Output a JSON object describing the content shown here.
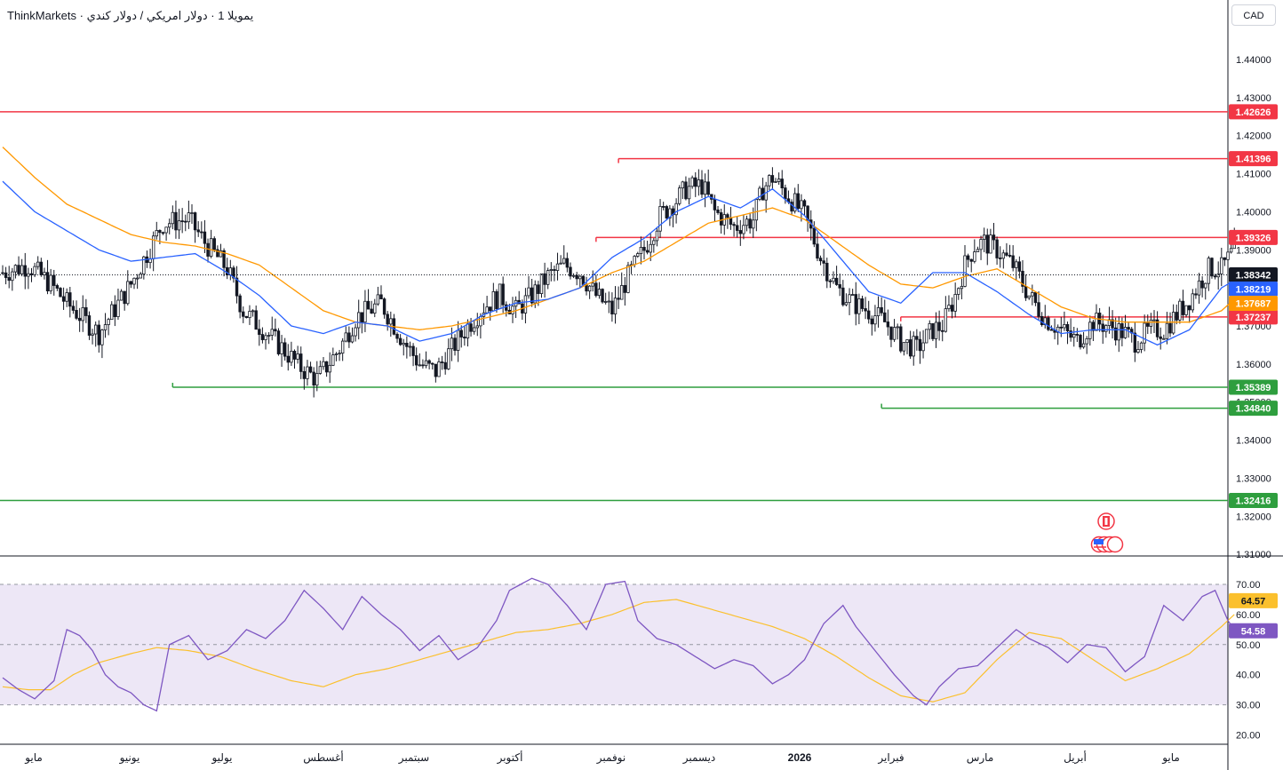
{
  "header": {
    "title": "ThinkMarkets · يمويلا 1 · دولار امريكي / دولار كندي",
    "currency_button": "CAD"
  },
  "colors": {
    "candle": "#131722",
    "ema_fast": "#2962ff",
    "ema_slow": "#ff9800",
    "resistance": "#f23645",
    "support": "#2e9e3e",
    "rsi_line": "#7e57c2",
    "rsi_ma": "#fbc02d",
    "rsi_band": "#ede7f6",
    "current_price": "#131722"
  },
  "chart_data": [
    {
      "type": "candlestick",
      "title": "",
      "price_axis": {
        "ylim": [
          1.305,
          1.455
        ],
        "ticks": [
          "1.44000",
          "1.43000",
          "1.42000",
          "1.41000",
          "1.40000",
          "1.39000",
          "1.37000",
          "1.36000",
          "1.35000",
          "1.34000",
          "1.33000",
          "1.32000",
          "1.31000"
        ]
      },
      "time_axis": {
        "labels": [
          "مايو",
          "يونيو",
          "يوليو",
          "أغسطس",
          "سبتمبر",
          "أكتوبر",
          "نوفمبر",
          "ديسمبر",
          "2026",
          "فبراير",
          "مارس",
          "أبريل",
          "مايو"
        ],
        "bold": [
          "2026"
        ]
      },
      "horizontal_levels": [
        {
          "price": 1.42626,
          "label": "1.42626",
          "role": "resistance"
        },
        {
          "price": 1.41396,
          "label": "1.41396",
          "role": "resistance"
        },
        {
          "price": 1.39326,
          "label": "1.39326",
          "role": "resistance"
        },
        {
          "price": 1.37237,
          "label": "1.37237",
          "role": "resistance"
        },
        {
          "price": 1.35389,
          "label": "1.35389",
          "role": "support"
        },
        {
          "price": 1.3484,
          "label": "1.34840",
          "role": "support"
        },
        {
          "price": 1.32416,
          "label": "1.32416",
          "role": "support"
        }
      ],
      "price_labels": [
        {
          "price": 1.38342,
          "label": "1.38342",
          "role": "current"
        },
        {
          "price": 1.38219,
          "label": "1.38219",
          "role": "ema_fast"
        },
        {
          "price": 1.37687,
          "label": "1.37687",
          "role": "ema_slow"
        }
      ],
      "close_path": [
        [
          0,
          1.384
        ],
        [
          8,
          1.386
        ],
        [
          15,
          1.381
        ],
        [
          20,
          1.376
        ],
        [
          25,
          1.372
        ],
        [
          30,
          1.368
        ],
        [
          40,
          1.381
        ],
        [
          50,
          1.397
        ],
        [
          58,
          1.398
        ],
        [
          63,
          1.392
        ],
        [
          70,
          1.385
        ],
        [
          75,
          1.374
        ],
        [
          85,
          1.366
        ],
        [
          93,
          1.359
        ],
        [
          98,
          1.356
        ],
        [
          105,
          1.364
        ],
        [
          110,
          1.372
        ],
        [
          118,
          1.376
        ],
        [
          125,
          1.366
        ],
        [
          130,
          1.36
        ],
        [
          135,
          1.358
        ],
        [
          140,
          1.364
        ],
        [
          145,
          1.37
        ],
        [
          150,
          1.375
        ],
        [
          155,
          1.378
        ],
        [
          160,
          1.374
        ],
        [
          165,
          1.378
        ],
        [
          170,
          1.383
        ],
        [
          175,
          1.386
        ],
        [
          180,
          1.384
        ],
        [
          185,
          1.378
        ],
        [
          190,
          1.374
        ],
        [
          195,
          1.383
        ],
        [
          200,
          1.39
        ],
        [
          205,
          1.399
        ],
        [
          210,
          1.403
        ],
        [
          213,
          1.406
        ],
        [
          218,
          1.407
        ],
        [
          222,
          1.4
        ],
        [
          228,
          1.396
        ],
        [
          234,
          1.398
        ],
        [
          237,
          1.406
        ],
        [
          240,
          1.409
        ],
        [
          245,
          1.404
        ],
        [
          250,
          1.399
        ],
        [
          255,
          1.388
        ],
        [
          260,
          1.38
        ],
        [
          265,
          1.376
        ],
        [
          270,
          1.374
        ],
        [
          275,
          1.371
        ],
        [
          280,
          1.366
        ],
        [
          285,
          1.364
        ],
        [
          290,
          1.369
        ],
        [
          293,
          1.37
        ],
        [
          297,
          1.378
        ],
        [
          300,
          1.386
        ],
        [
          303,
          1.391
        ],
        [
          306,
          1.392
        ],
        [
          310,
          1.39
        ],
        [
          315,
          1.386
        ],
        [
          320,
          1.378
        ],
        [
          325,
          1.372
        ],
        [
          330,
          1.369
        ],
        [
          335,
          1.366
        ],
        [
          340,
          1.371
        ],
        [
          345,
          1.37
        ],
        [
          350,
          1.368
        ],
        [
          353,
          1.366
        ],
        [
          358,
          1.369
        ],
        [
          362,
          1.369
        ],
        [
          365,
          1.372
        ],
        [
          370,
          1.377
        ],
        [
          373,
          1.381
        ],
        [
          376,
          1.385
        ],
        [
          380,
          1.385
        ],
        [
          384,
          1.39
        ]
      ],
      "moving_averages": [
        {
          "name": "",
          "path": [
            [
              0,
              1.417
            ],
            [
              10,
              1.409
            ],
            [
              20,
              1.402
            ],
            [
              30,
              1.398
            ],
            [
              40,
              1.394
            ],
            [
              50,
              1.392
            ],
            [
              60,
              1.391
            ],
            [
              70,
              1.389
            ],
            [
              80,
              1.386
            ],
            [
              90,
              1.38
            ],
            [
              100,
              1.374
            ],
            [
              110,
              1.371
            ],
            [
              120,
              1.37
            ],
            [
              130,
              1.369
            ],
            [
              140,
              1.37
            ],
            [
              150,
              1.372
            ],
            [
              160,
              1.374
            ],
            [
              170,
              1.377
            ],
            [
              180,
              1.38
            ],
            [
              190,
              1.384
            ],
            [
              200,
              1.387
            ],
            [
              210,
              1.392
            ],
            [
              220,
              1.397
            ],
            [
              230,
              1.399
            ],
            [
              240,
              1.401
            ],
            [
              250,
              1.398
            ],
            [
              260,
              1.392
            ],
            [
              270,
              1.386
            ],
            [
              280,
              1.381
            ],
            [
              290,
              1.38
            ],
            [
              300,
              1.383
            ],
            [
              310,
              1.385
            ],
            [
              320,
              1.38
            ],
            [
              330,
              1.375
            ],
            [
              340,
              1.372
            ],
            [
              350,
              1.371
            ],
            [
              360,
              1.371
            ],
            [
              370,
              1.371
            ],
            [
              380,
              1.374
            ],
            [
              384,
              1.377
            ]
          ]
        },
        {
          "name": "",
          "path": [
            [
              0,
              1.408
            ],
            [
              10,
              1.4
            ],
            [
              20,
              1.395
            ],
            [
              30,
              1.39
            ],
            [
              40,
              1.387
            ],
            [
              50,
              1.388
            ],
            [
              60,
              1.389
            ],
            [
              70,
              1.384
            ],
            [
              80,
              1.378
            ],
            [
              90,
              1.37
            ],
            [
              100,
              1.368
            ],
            [
              110,
              1.371
            ],
            [
              120,
              1.37
            ],
            [
              130,
              1.366
            ],
            [
              140,
              1.368
            ],
            [
              150,
              1.373
            ],
            [
              160,
              1.376
            ],
            [
              170,
              1.377
            ],
            [
              180,
              1.38
            ],
            [
              190,
              1.388
            ],
            [
              200,
              1.393
            ],
            [
              210,
              1.4
            ],
            [
              220,
              1.404
            ],
            [
              230,
              1.401
            ],
            [
              240,
              1.406
            ],
            [
              250,
              1.399
            ],
            [
              260,
              1.389
            ],
            [
              270,
              1.379
            ],
            [
              280,
              1.376
            ],
            [
              290,
              1.384
            ],
            [
              300,
              1.384
            ],
            [
              310,
              1.379
            ],
            [
              320,
              1.373
            ],
            [
              330,
              1.368
            ],
            [
              340,
              1.369
            ],
            [
              350,
              1.369
            ],
            [
              360,
              1.365
            ],
            [
              370,
              1.369
            ],
            [
              380,
              1.38
            ],
            [
              384,
              1.382
            ]
          ]
        }
      ]
    },
    {
      "type": "line",
      "title": "",
      "ylim": [
        16,
        78
      ],
      "ticks": [
        "70.00",
        "60.00",
        "50.00",
        "40.00",
        "30.00",
        "20.00"
      ],
      "guides": [
        70,
        50,
        30
      ],
      "value_labels": [
        {
          "value": 64.57,
          "label": "64.57",
          "role": "rsi_ma"
        },
        {
          "value": 54.58,
          "label": "54.58",
          "role": "rsi"
        }
      ],
      "series": [
        {
          "name": "",
          "path": [
            [
              0,
              36
            ],
            [
              8,
              35
            ],
            [
              15,
              35
            ],
            [
              22,
              40
            ],
            [
              30,
              44
            ],
            [
              40,
              47
            ],
            [
              48,
              49
            ],
            [
              58,
              48
            ],
            [
              68,
              46
            ],
            [
              78,
              42
            ],
            [
              90,
              38
            ],
            [
              100,
              36
            ],
            [
              110,
              40
            ],
            [
              120,
              42
            ],
            [
              130,
              45
            ],
            [
              140,
              48
            ],
            [
              150,
              51
            ],
            [
              160,
              54
            ],
            [
              170,
              55
            ],
            [
              180,
              57
            ],
            [
              190,
              60
            ],
            [
              200,
              64
            ],
            [
              210,
              65
            ],
            [
              220,
              62
            ],
            [
              230,
              59
            ],
            [
              240,
              56
            ],
            [
              250,
              52
            ],
            [
              260,
              46
            ],
            [
              270,
              39
            ],
            [
              280,
              33
            ],
            [
              290,
              31
            ],
            [
              300,
              34
            ],
            [
              310,
              45
            ],
            [
              320,
              54
            ],
            [
              330,
              52
            ],
            [
              340,
              45
            ],
            [
              350,
              38
            ],
            [
              360,
              42
            ],
            [
              370,
              47
            ],
            [
              380,
              56
            ],
            [
              384,
              60
            ]
          ]
        },
        {
          "name": "",
          "path": [
            [
              0,
              39
            ],
            [
              5,
              35
            ],
            [
              10,
              32
            ],
            [
              16,
              38
            ],
            [
              20,
              55
            ],
            [
              24,
              53
            ],
            [
              28,
              48
            ],
            [
              32,
              40
            ],
            [
              36,
              36
            ],
            [
              40,
              34
            ],
            [
              44,
              30
            ],
            [
              48,
              28
            ],
            [
              52,
              50
            ],
            [
              58,
              53
            ],
            [
              64,
              45
            ],
            [
              70,
              48
            ],
            [
              76,
              55
            ],
            [
              82,
              52
            ],
            [
              88,
              58
            ],
            [
              94,
              68
            ],
            [
              100,
              62
            ],
            [
              106,
              55
            ],
            [
              112,
              66
            ],
            [
              118,
              60
            ],
            [
              124,
              55
            ],
            [
              130,
              48
            ],
            [
              136,
              53
            ],
            [
              142,
              45
            ],
            [
              148,
              49
            ],
            [
              154,
              58
            ],
            [
              158,
              68
            ],
            [
              165,
              72
            ],
            [
              170,
              70
            ],
            [
              176,
              63
            ],
            [
              182,
              55
            ],
            [
              188,
              70
            ],
            [
              194,
              71
            ],
            [
              198,
              58
            ],
            [
              204,
              52
            ],
            [
              210,
              50
            ],
            [
              216,
              46
            ],
            [
              222,
              42
            ],
            [
              228,
              45
            ],
            [
              234,
              43
            ],
            [
              240,
              37
            ],
            [
              245,
              40
            ],
            [
              250,
              45
            ],
            [
              256,
              57
            ],
            [
              262,
              63
            ],
            [
              266,
              56
            ],
            [
              272,
              48
            ],
            [
              278,
              40
            ],
            [
              284,
              33
            ],
            [
              288,
              30
            ],
            [
              292,
              36
            ],
            [
              298,
              42
            ],
            [
              304,
              43
            ],
            [
              310,
              49
            ],
            [
              316,
              55
            ],
            [
              320,
              52
            ],
            [
              326,
              49
            ],
            [
              332,
              44
            ],
            [
              338,
              50
            ],
            [
              344,
              49
            ],
            [
              350,
              41
            ],
            [
              356,
              46
            ],
            [
              362,
              63
            ],
            [
              368,
              58
            ],
            [
              374,
              66
            ],
            [
              378,
              68
            ],
            [
              382,
              58
            ],
            [
              384,
              55
            ]
          ]
        }
      ]
    }
  ]
}
